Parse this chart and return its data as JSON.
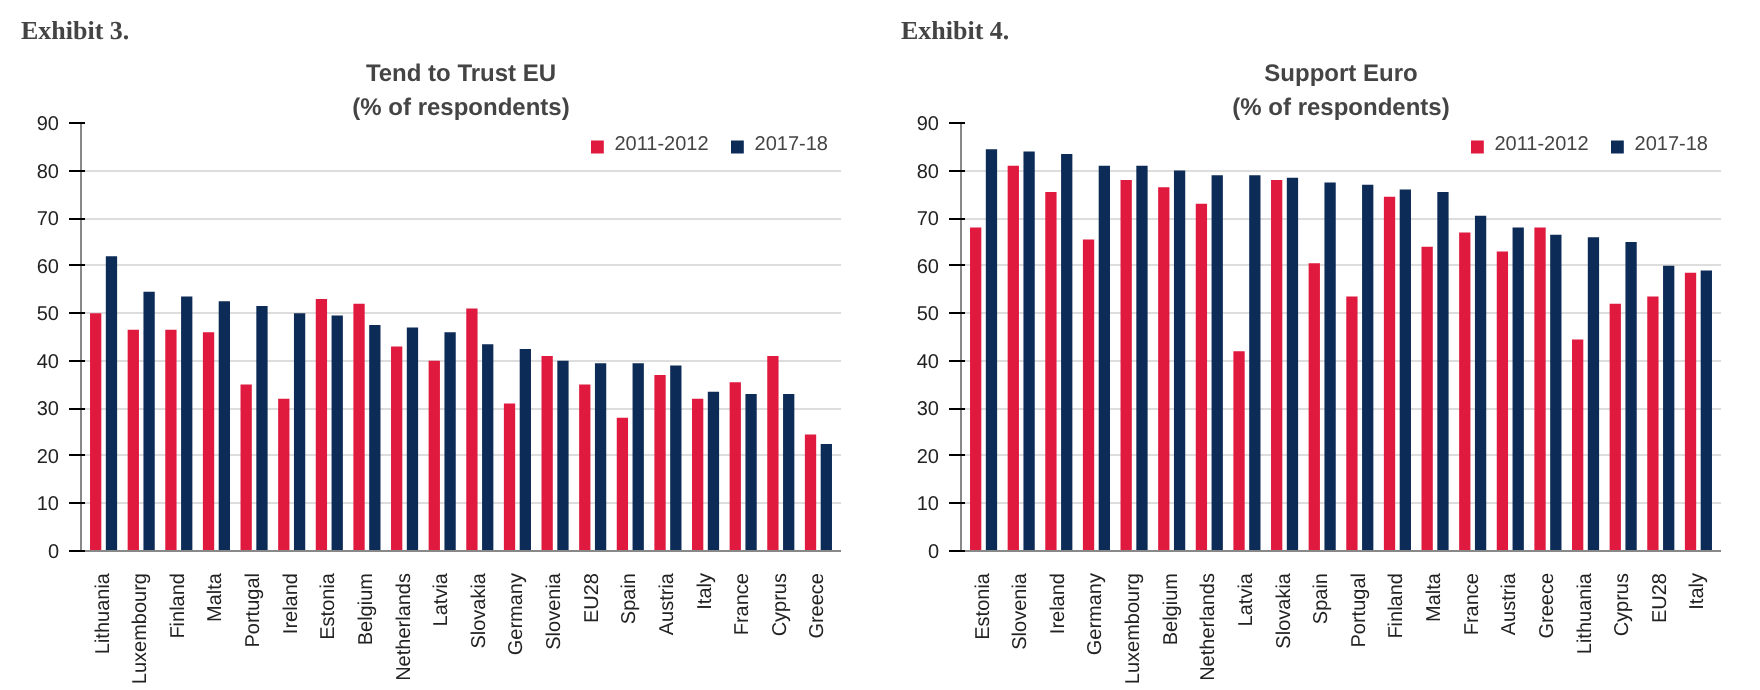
{
  "chart_data": [
    {
      "type": "bar",
      "title": "Tend to Trust EU",
      "subtitle": "(% of respondents)",
      "annotations": [
        "Exhibit 3."
      ],
      "categories": [
        "Lithuania",
        "Luxembourg",
        "Finland",
        "Malta",
        "Portugal",
        "Ireland",
        "Estonia",
        "Belgium",
        "Netherlands",
        "Latvia",
        "Slovakia",
        "Germany",
        "Slovenia",
        "EU28",
        "Spain",
        "Austria",
        "Italy",
        "France",
        "Cyprus",
        "Greece"
      ],
      "series": [
        {
          "name": "2011-2012",
          "color": "#e0193f",
          "values": [
            50,
            46.5,
            46.5,
            46,
            35,
            32,
            53,
            52,
            43,
            40,
            51,
            31,
            41,
            35,
            28,
            37,
            32,
            35.5,
            41,
            24.5
          ]
        },
        {
          "name": "2017-18",
          "color": "#0d2b57",
          "values": [
            62,
            54.5,
            53.5,
            52.5,
            51.5,
            50,
            49.5,
            47.5,
            47,
            46,
            43.5,
            42.5,
            40,
            39.5,
            39.5,
            39,
            33.5,
            33,
            33,
            22.5
          ]
        }
      ],
      "ylim": [
        0,
        90
      ],
      "yticks": [
        0,
        10,
        20,
        30,
        40,
        50,
        60,
        70,
        80,
        90
      ],
      "grid": "y",
      "legend": "top right"
    },
    {
      "type": "bar",
      "title": "Support Euro",
      "subtitle": "(% of respondents)",
      "annotations": [
        "Exhibit 4."
      ],
      "categories": [
        "Estonia",
        "Slovenia",
        "Ireland",
        "Germany",
        "Luxembourg",
        "Belgium",
        "Netherlands",
        "Latvia",
        "Slovakia",
        "Spain",
        "Portugal",
        "Finland",
        "Malta",
        "France",
        "Austria",
        "Greece",
        "Lithuania",
        "Cyprus",
        "EU28",
        "Italy"
      ],
      "series": [
        {
          "name": "2011-2012",
          "color": "#e0193f",
          "values": [
            68,
            81,
            75.5,
            65.5,
            78,
            76.5,
            73,
            42,
            78,
            60.5,
            53.5,
            74.5,
            64,
            67,
            63,
            68,
            44.5,
            52,
            53.5,
            58.5
          ]
        },
        {
          "name": "2017-18",
          "color": "#0d2b57",
          "values": [
            84.5,
            84,
            83.5,
            81,
            81,
            80,
            79,
            79,
            78.5,
            77.5,
            77,
            76,
            75.5,
            70.5,
            68,
            66.5,
            66,
            65,
            60,
            59
          ]
        }
      ],
      "ylim": [
        0,
        90
      ],
      "yticks": [
        0,
        10,
        20,
        30,
        40,
        50,
        60,
        70,
        80,
        90
      ],
      "grid": "y",
      "legend": "top right"
    }
  ]
}
